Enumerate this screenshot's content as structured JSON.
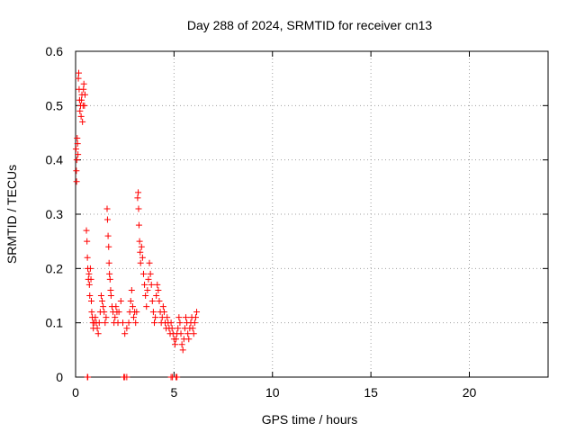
{
  "chart_data": {
    "type": "scatter",
    "title": "Day 288 of 2024, SRMTID for receiver cn13",
    "xlabel": "GPS time / hours",
    "ylabel": "SRMTID / TECUs",
    "xlim": [
      0,
      24
    ],
    "ylim": [
      0,
      0.6
    ],
    "xticks": [
      0,
      5,
      10,
      15,
      20
    ],
    "xtick_labels": [
      "0",
      "5",
      "10",
      "15",
      "20"
    ],
    "yticks": [
      0,
      0.1,
      0.2,
      0.3,
      0.4,
      0.5,
      0.6
    ],
    "ytick_labels": [
      "0",
      "0.1",
      "0.2",
      "0.3",
      "0.4",
      "0.5",
      "0.6"
    ],
    "grid": true,
    "marker": "+",
    "series": [
      {
        "name": "cn13",
        "color": "#ff0000",
        "points": [
          [
            0.02,
            0.42
          ],
          [
            0.04,
            0.38
          ],
          [
            0.05,
            0.36
          ],
          [
            0.06,
            0.4
          ],
          [
            0.08,
            0.44
          ],
          [
            0.1,
            0.43
          ],
          [
            0.12,
            0.41
          ],
          [
            0.14,
            0.55
          ],
          [
            0.16,
            0.56
          ],
          [
            0.18,
            0.53
          ],
          [
            0.2,
            0.51
          ],
          [
            0.22,
            0.49
          ],
          [
            0.25,
            0.5
          ],
          [
            0.28,
            0.48
          ],
          [
            0.3,
            0.51
          ],
          [
            0.32,
            0.52
          ],
          [
            0.35,
            0.47
          ],
          [
            0.38,
            0.5
          ],
          [
            0.4,
            0.53
          ],
          [
            0.42,
            0.54
          ],
          [
            0.45,
            0.5
          ],
          [
            0.48,
            0.52
          ],
          [
            0.55,
            0.27
          ],
          [
            0.58,
            0.25
          ],
          [
            0.6,
            0.22
          ],
          [
            0.62,
            0.2
          ],
          [
            0.65,
            0.18
          ],
          [
            0.68,
            0.19
          ],
          [
            0.7,
            0.17
          ],
          [
            0.72,
            0.15
          ],
          [
            0.75,
            0.2
          ],
          [
            0.78,
            0.18
          ],
          [
            0.8,
            0.14
          ],
          [
            0.82,
            0.12
          ],
          [
            0.85,
            0.11
          ],
          [
            0.88,
            0.1
          ],
          [
            0.9,
            0.09
          ],
          [
            0.95,
            0.1
          ],
          [
            1.0,
            0.11
          ],
          [
            1.05,
            0.1
          ],
          [
            1.1,
            0.09
          ],
          [
            1.15,
            0.08
          ],
          [
            1.2,
            0.1
          ],
          [
            1.25,
            0.12
          ],
          [
            1.3,
            0.15
          ],
          [
            1.35,
            0.14
          ],
          [
            1.4,
            0.13
          ],
          [
            1.45,
            0.12
          ],
          [
            1.5,
            0.1
          ],
          [
            1.55,
            0.11
          ],
          [
            1.6,
            0.31
          ],
          [
            1.62,
            0.29
          ],
          [
            1.65,
            0.26
          ],
          [
            1.68,
            0.24
          ],
          [
            1.7,
            0.21
          ],
          [
            1.72,
            0.19
          ],
          [
            1.75,
            0.18
          ],
          [
            1.78,
            0.16
          ],
          [
            1.8,
            0.15
          ],
          [
            1.85,
            0.13
          ],
          [
            1.9,
            0.12
          ],
          [
            1.95,
            0.1
          ],
          [
            2.0,
            0.11
          ],
          [
            2.05,
            0.13
          ],
          [
            2.1,
            0.12
          ],
          [
            2.15,
            0.1
          ],
          [
            2.2,
            0.12
          ],
          [
            2.3,
            0.14
          ],
          [
            2.4,
            0.1
          ],
          [
            2.5,
            0.08
          ],
          [
            2.6,
            0.09
          ],
          [
            2.7,
            0.1
          ],
          [
            2.75,
            0.12
          ],
          [
            2.8,
            0.14
          ],
          [
            2.85,
            0.16
          ],
          [
            2.9,
            0.13
          ],
          [
            2.95,
            0.11
          ],
          [
            3.0,
            0.12
          ],
          [
            3.05,
            0.1
          ],
          [
            3.1,
            0.12
          ],
          [
            3.15,
            0.33
          ],
          [
            3.18,
            0.34
          ],
          [
            3.2,
            0.31
          ],
          [
            3.22,
            0.28
          ],
          [
            3.25,
            0.25
          ],
          [
            3.28,
            0.23
          ],
          [
            3.3,
            0.21
          ],
          [
            3.35,
            0.24
          ],
          [
            3.4,
            0.22
          ],
          [
            3.45,
            0.19
          ],
          [
            3.5,
            0.17
          ],
          [
            3.55,
            0.15
          ],
          [
            3.6,
            0.13
          ],
          [
            3.65,
            0.16
          ],
          [
            3.7,
            0.18
          ],
          [
            3.75,
            0.21
          ],
          [
            3.8,
            0.19
          ],
          [
            3.85,
            0.17
          ],
          [
            3.9,
            0.14
          ],
          [
            3.95,
            0.12
          ],
          [
            4.0,
            0.1
          ],
          [
            4.05,
            0.11
          ],
          [
            4.1,
            0.15
          ],
          [
            4.15,
            0.17
          ],
          [
            4.2,
            0.16
          ],
          [
            4.25,
            0.14
          ],
          [
            4.3,
            0.12
          ],
          [
            4.35,
            0.1
          ],
          [
            4.4,
            0.11
          ],
          [
            4.45,
            0.13
          ],
          [
            4.5,
            0.12
          ],
          [
            4.55,
            0.1
          ],
          [
            4.6,
            0.09
          ],
          [
            4.65,
            0.11
          ],
          [
            4.7,
            0.1
          ],
          [
            4.75,
            0.09
          ],
          [
            4.8,
            0.08
          ],
          [
            4.85,
            0.1
          ],
          [
            4.9,
            0.09
          ],
          [
            4.95,
            0.08
          ],
          [
            5.0,
            0.07
          ],
          [
            5.05,
            0.06
          ],
          [
            5.1,
            0.07
          ],
          [
            5.15,
            0.08
          ],
          [
            5.2,
            0.09
          ],
          [
            5.25,
            0.11
          ],
          [
            5.3,
            0.1
          ],
          [
            5.35,
            0.08
          ],
          [
            5.4,
            0.06
          ],
          [
            5.45,
            0.05
          ],
          [
            5.5,
            0.07
          ],
          [
            5.55,
            0.09
          ],
          [
            5.6,
            0.11
          ],
          [
            5.65,
            0.1
          ],
          [
            5.7,
            0.08
          ],
          [
            5.75,
            0.07
          ],
          [
            5.8,
            0.09
          ],
          [
            5.85,
            0.1
          ],
          [
            5.9,
            0.11
          ],
          [
            5.95,
            0.09
          ],
          [
            6.0,
            0.08
          ],
          [
            6.05,
            0.1
          ],
          [
            6.1,
            0.11
          ],
          [
            6.15,
            0.12
          ],
          [
            0.6,
            0.0
          ],
          [
            0.62,
            0.0
          ],
          [
            2.45,
            0.0
          ],
          [
            2.5,
            0.0
          ],
          [
            2.6,
            0.0
          ],
          [
            4.85,
            0.0
          ],
          [
            4.92,
            0.0
          ],
          [
            5.1,
            0.0
          ],
          [
            5.15,
            0.0
          ]
        ]
      }
    ]
  }
}
